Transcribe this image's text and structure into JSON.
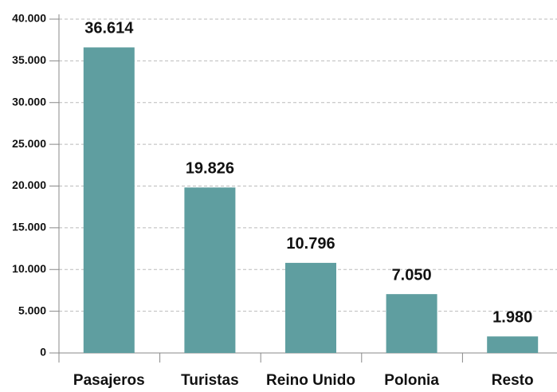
{
  "chart_data": {
    "type": "bar",
    "categories": [
      "Pasajeros",
      "Turistas",
      "Reino Unido",
      "Polonia",
      "Resto"
    ],
    "values": [
      36614,
      19826,
      10796,
      7050,
      1980
    ],
    "value_labels": [
      "36.614",
      "19.826",
      "10.796",
      "7.050",
      "1.980"
    ],
    "color": "#5f9ea0",
    "ylim": [
      0,
      40000
    ],
    "yticks": [
      0,
      {
        "value": 5000,
        "label": "5.000"
      },
      {
        "value": 10000,
        "label": "10.000"
      },
      {
        "value": 15000,
        "label": "15.000"
      },
      {
        "value": 20000,
        "label": "20.000"
      },
      {
        "value": 25000,
        "label": "25.000"
      },
      {
        "value": 30000,
        "label": "30.000"
      },
      {
        "value": 35000,
        "label": "35.000"
      },
      {
        "value": 40000,
        "label": "40.000"
      }
    ],
    "grid": true
  }
}
